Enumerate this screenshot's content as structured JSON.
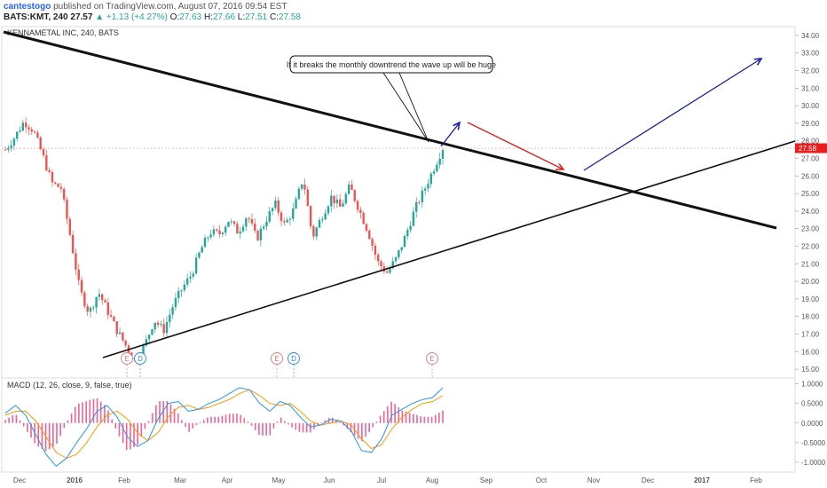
{
  "header": {
    "author": "cantestogo",
    "published": "published on TradingView.com, August 07, 2016 09:54 EST",
    "symbol": "BATS:KMT, 240",
    "price": "27.57",
    "change": "▲ +1.13 (+4.27%)",
    "o_label": "O:",
    "o_value": "27.63",
    "h_label": "H:",
    "h_value": "27.66",
    "l_label": "L:",
    "l_value": "27.51",
    "c_label": "C:",
    "c_value": "27.58"
  },
  "chart_data": [
    {
      "type": "candlestick",
      "title": "KENNAMETAL INC, 240, BATS",
      "y_ticks": [
        "34.00",
        "33.00",
        "32.00",
        "31.00",
        "30.00",
        "29.00",
        "28.00",
        "27.00",
        "26.00",
        "25.00",
        "24.00",
        "23.00",
        "22.00",
        "21.00",
        "20.00",
        "19.00",
        "18.00",
        "17.00",
        "16.00",
        "15.00"
      ],
      "ylim": [
        14.5,
        34.5
      ],
      "x_ticks": [
        "Dec",
        "2016",
        "Feb",
        "Mar",
        "Apr",
        "May",
        "Jun",
        "Jul",
        "Aug",
        "Sep",
        "Oct",
        "Nov",
        "Dec",
        "2017",
        "Feb"
      ],
      "last_price_label": "27.58",
      "last_price_color": "#e91e1e",
      "annotation": "If it breaks the monthly downtrend the wave up will be huge",
      "event_markers": [
        "E",
        "D",
        "E",
        "D",
        "E"
      ],
      "price_path": [
        27.5,
        28.2,
        29.1,
        28.6,
        27.2,
        25.6,
        25.3,
        22.5,
        19.5,
        18.2,
        19.4,
        18.3,
        17.2,
        16.3,
        15.4,
        16.4,
        17.8,
        17.2,
        18.6,
        19.6,
        20.4,
        21.8,
        22.8,
        22.7,
        23.5,
        22.8,
        23.8,
        22.4,
        23.5,
        24.4,
        23.2,
        24.1,
        25.9,
        22.5,
        23.7,
        24.8,
        24.2,
        25.4,
        24.1,
        22.8,
        21.1,
        20.5,
        21.3,
        22.6,
        24.1,
        25.2,
        26.4,
        27.6
      ],
      "price_color_up": "#26a69a",
      "price_color_down": "#ef5350"
    },
    {
      "type": "line",
      "title": "MACD (12, 26, close, 9, false, true)",
      "y_ticks": [
        "1.0000",
        "0.5000",
        "0.0000",
        "-0.5000",
        "-1.0000"
      ],
      "ylim": [
        -1.25,
        1.15
      ],
      "macd_color": "#2196f3",
      "signal_color": "#ff9800",
      "histogram_color": "#f06292",
      "series": [
        {
          "values": [
            0.25,
            0.45,
            0.2,
            -0.3,
            -0.8,
            -1.1,
            -0.9,
            -0.5,
            -0.15,
            0.3,
            0.45,
            0.15,
            -0.35,
            -0.6,
            -0.45,
            0.1,
            0.5,
            0.55,
            0.3,
            0.35,
            0.5,
            0.6,
            0.75,
            0.9,
            0.85,
            0.5,
            0.3,
            0.55,
            0.45,
            0.15,
            -0.1,
            -0.05,
            0.1,
            0.05,
            -0.2,
            -0.7,
            -0.75,
            -0.4,
            0.2,
            0.35,
            0.5,
            0.6,
            0.65,
            0.9
          ]
        },
        {
          "values": [
            0.2,
            0.3,
            0.3,
            0.05,
            -0.35,
            -0.75,
            -0.9,
            -0.8,
            -0.5,
            -0.1,
            0.2,
            0.3,
            0.1,
            -0.25,
            -0.45,
            -0.25,
            0.15,
            0.4,
            0.45,
            0.35,
            0.4,
            0.5,
            0.6,
            0.75,
            0.85,
            0.7,
            0.5,
            0.45,
            0.5,
            0.3,
            0.05,
            -0.05,
            0.0,
            0.05,
            -0.05,
            -0.4,
            -0.65,
            -0.55,
            -0.15,
            0.15,
            0.35,
            0.5,
            0.55,
            0.7
          ]
        }
      ]
    }
  ]
}
